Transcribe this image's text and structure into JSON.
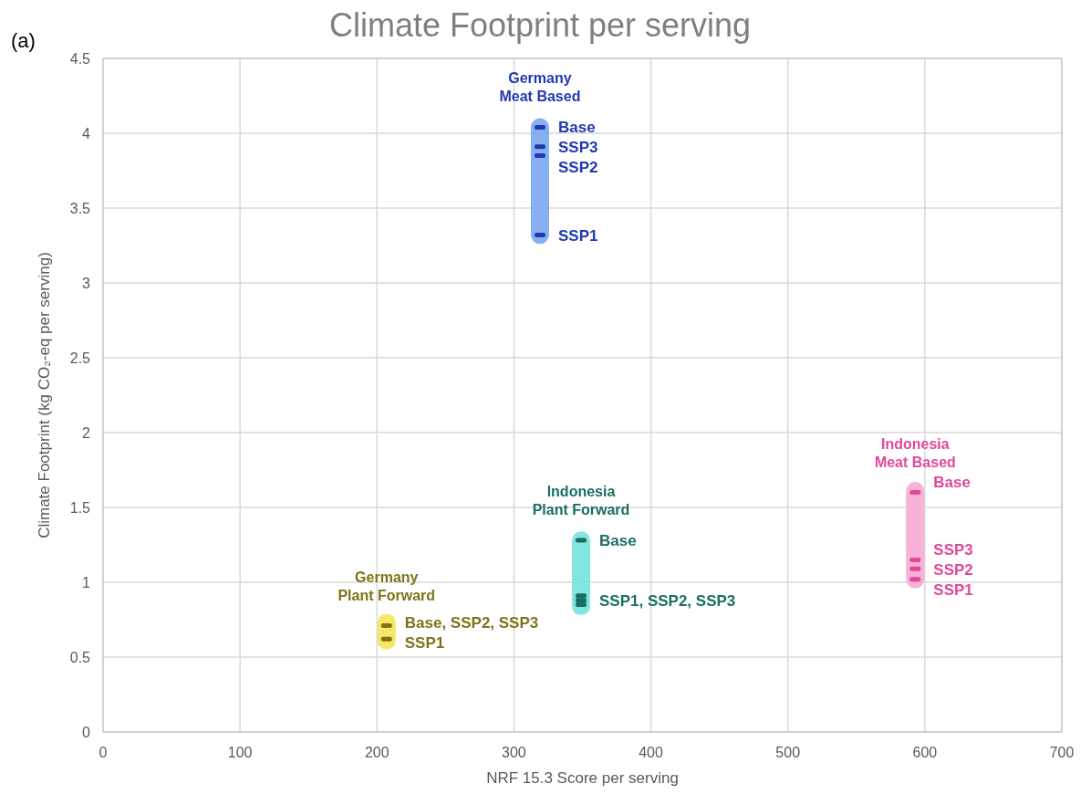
{
  "chart_data": {
    "type": "scatter",
    "title": "Climate Footprint per serving",
    "xlabel": "NRF 15.3 Score per serving",
    "ylabel": "Climate Footprint (kg CO₂-eq per serving)",
    "xlim": [
      0,
      700
    ],
    "xticks": [
      0,
      100,
      200,
      300,
      400,
      500,
      600,
      700
    ],
    "ylim": [
      0,
      4.5
    ],
    "yticks": [
      0,
      0.5,
      1,
      1.5,
      2,
      2.5,
      3,
      3.5,
      4,
      4.5
    ],
    "grid": true,
    "series": [
      {
        "type": "bar",
        "color": "#7aa7ee",
        "x": [
          319
        ],
        "base": [
          3.26
        ],
        "values": [
          0.84
        ]
      },
      {
        "type": "bar",
        "color": "#f5e35a",
        "x": [
          207
        ],
        "base": [
          0.55
        ],
        "values": [
          0.24
        ]
      },
      {
        "type": "bar",
        "color": "#73e3d9",
        "x": [
          349
        ],
        "base": [
          0.78
        ],
        "values": [
          0.56
        ]
      },
      {
        "type": "bar",
        "color": "#f7a8d3",
        "x": [
          593
        ],
        "base": [
          0.96
        ],
        "values": [
          0.71
        ]
      },
      {
        "name": "Germany Meat Based",
        "color": "#2238b0",
        "x": [
          319,
          319,
          319,
          319
        ],
        "values": [
          4.04,
          3.91,
          3.85,
          3.32
        ]
      },
      {
        "name": "Germany Plant Forward",
        "color": "#7d7316",
        "x": [
          207,
          207
        ],
        "values": [
          0.71,
          0.62
        ]
      },
      {
        "name": "Indonesia Plant Forward",
        "color": "#1a6e62",
        "x": [
          349,
          349,
          349,
          349
        ],
        "values": [
          1.28,
          0.91,
          0.88,
          0.85
        ]
      },
      {
        "name": "Indonesia Meat Based",
        "color": "#e0489a",
        "x": [
          593,
          593,
          593,
          593
        ],
        "values": [
          1.6,
          1.15,
          1.09,
          1.02
        ]
      }
    ],
    "annotations": [
      "(a)",
      {
        "text": "Base",
        "x": 319,
        "y": 4.04
      },
      {
        "text": "SSP3",
        "x": 319,
        "y": 3.91
      },
      {
        "text": "SSP2",
        "x": 319,
        "y": 3.85
      },
      {
        "text": "SSP1",
        "x": 319,
        "y": 3.32
      },
      {
        "text": "Base, SSP2, SSP3",
        "x": 207,
        "y": 0.71
      },
      {
        "text": "SSP1",
        "x": 207,
        "y": 0.62
      },
      {
        "text": "Base",
        "x": 349,
        "y": 1.28
      },
      {
        "text": "SSP1, SSP2, SSP3",
        "x": 349,
        "y": 0.88
      },
      {
        "text": "Base",
        "x": 593,
        "y": 1.6
      },
      {
        "text": "SSP3",
        "x": 593,
        "y": 1.15
      },
      {
        "text": "SSP2",
        "x": 593,
        "y": 1.09
      },
      {
        "text": "SSP1",
        "x": 593,
        "y": 1.02
      }
    ]
  }
}
